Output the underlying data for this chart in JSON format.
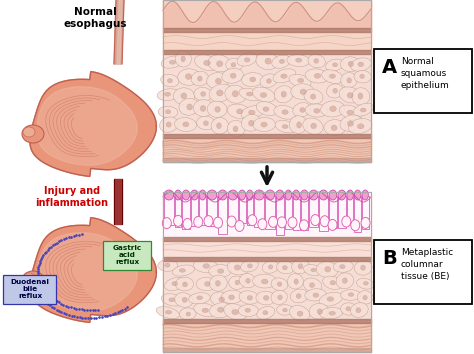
{
  "bg_color": "#ffffff",
  "label_A": "A",
  "label_A_text": "Normal\nsquamous\nepithelium",
  "label_B": "B",
  "label_B_text": "Metaplastic\ncolumnar\ntissue (BE)",
  "normal_esophagus_label": "Normal\nesophagus",
  "injury_label": "Injury and\ninflammation",
  "gastric_label": "Gastric\nacid\nreflux",
  "duodenal_label": "Duodenal\nbile\nreflux",
  "pink_light": "#f7d0c0",
  "pink_medium": "#e8937a",
  "pink_dark": "#c0504d",
  "salmon": "#e8a090",
  "tissue_bg": "#f5cfc0",
  "tissue_pale": "#fce8e0",
  "tissue_stripe": "#d4937a",
  "tissue_dark_stripe": "#c07860",
  "magenta": "#cc44aa",
  "magenta_light": "#f0a0d0",
  "magenta_goblet": "#e060b0",
  "white_pink": "#fff0f4",
  "cell_fill": "#f2ddd5",
  "cell_edge": "#c09080",
  "dark_stripe": "#a87060",
  "red_label": "#cc0000",
  "green_box_bg": "#c8e8c0",
  "green_box_edge": "#338833",
  "green_box_text": "#003300",
  "blue_box_bg": "#c0c8e8",
  "blue_box_edge": "#3333aa",
  "blue_box_text": "#000044",
  "arrow_color": "#111111",
  "esoph_normal_color": "#d4a090",
  "esoph_inflamed_color": "#993333",
  "stomach_fill": "#e8957a",
  "stomach_edge": "#c06050",
  "stomach_inner": "#f0b8a0",
  "stomach_highlight": "#fce8e0"
}
